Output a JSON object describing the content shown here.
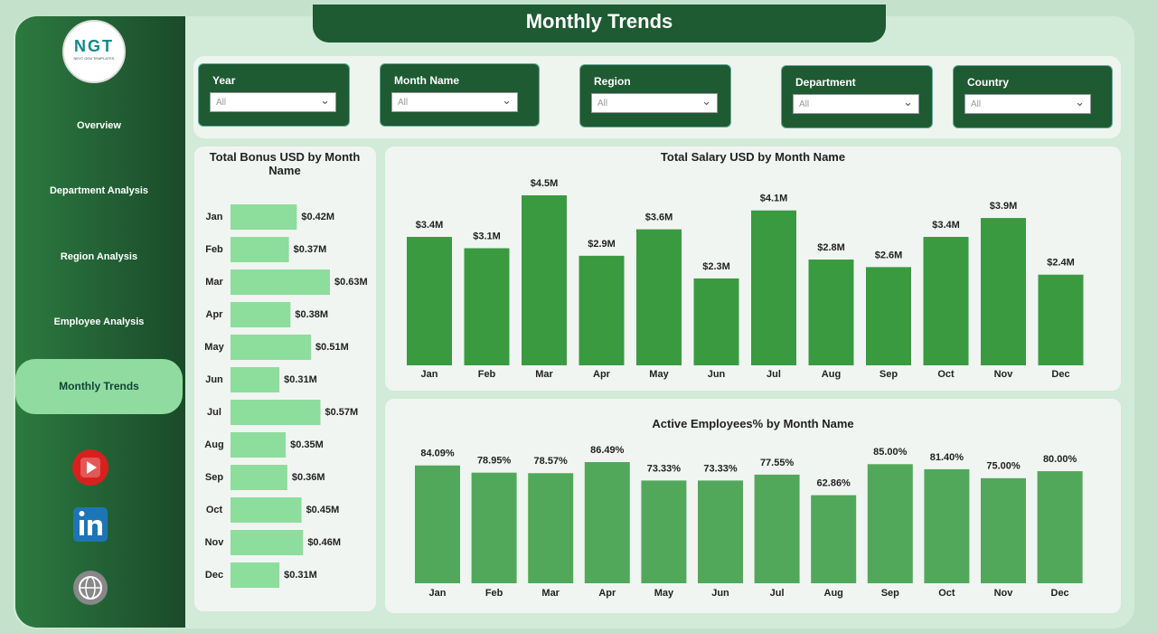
{
  "header": {
    "title": "Monthly Trends"
  },
  "logo": {
    "text": "NGT",
    "subtitle": "NEXT GEN TEMPLATES"
  },
  "nav": [
    "Overview",
    "Department Analysis",
    "Region Analysis",
    "Employee Analysis",
    "Monthly Trends"
  ],
  "filters": [
    {
      "label": "Year",
      "value": "All"
    },
    {
      "label": "Month Name",
      "value": "All"
    },
    {
      "label": "Region",
      "value": "All"
    },
    {
      "label": "Department",
      "value": "All"
    },
    {
      "label": "Country",
      "value": "All"
    }
  ],
  "chart_data": [
    {
      "type": "bar",
      "orientation": "horizontal",
      "title": "Total Bonus USD by Month Name",
      "color": "#8ddd9c",
      "categories": [
        "Jan",
        "Feb",
        "Mar",
        "Apr",
        "May",
        "Jun",
        "Jul",
        "Aug",
        "Sep",
        "Oct",
        "Nov",
        "Dec"
      ],
      "values": [
        0.42,
        0.37,
        0.63,
        0.38,
        0.51,
        0.31,
        0.57,
        0.35,
        0.36,
        0.45,
        0.46,
        0.31
      ],
      "value_labels": [
        "$0.42M",
        "$0.37M",
        "$0.63M",
        "$0.38M",
        "$0.51M",
        "$0.31M",
        "$0.57M",
        "$0.35M",
        "$0.36M",
        "$0.45M",
        "$0.46M",
        "$0.31M"
      ]
    },
    {
      "type": "bar",
      "orientation": "vertical",
      "title": "Total Salary USD by Month Name",
      "color": "#3a9a40",
      "categories": [
        "Jan",
        "Feb",
        "Mar",
        "Apr",
        "May",
        "Jun",
        "Jul",
        "Aug",
        "Sep",
        "Oct",
        "Nov",
        "Dec"
      ],
      "values": [
        3.4,
        3.1,
        4.5,
        2.9,
        3.6,
        2.3,
        4.1,
        2.8,
        2.6,
        3.4,
        3.9,
        2.4
      ],
      "value_labels": [
        "$3.4M",
        "$3.1M",
        "$4.5M",
        "$2.9M",
        "$3.6M",
        "$2.3M",
        "$4.1M",
        "$2.8M",
        "$2.6M",
        "$3.4M",
        "$3.9M",
        "$2.4M"
      ]
    },
    {
      "type": "bar",
      "orientation": "vertical",
      "title": "Active Employees% by Month Name",
      "color": "#52a85a",
      "categories": [
        "Jan",
        "Feb",
        "Mar",
        "Apr",
        "May",
        "Jun",
        "Jul",
        "Aug",
        "Sep",
        "Oct",
        "Nov",
        "Dec"
      ],
      "values": [
        84.09,
        78.95,
        78.57,
        86.49,
        73.33,
        73.33,
        77.55,
        62.86,
        85.0,
        81.4,
        75.0,
        80.0
      ],
      "value_labels": [
        "84.09%",
        "78.95%",
        "78.57%",
        "86.49%",
        "73.33%",
        "73.33%",
        "77.55%",
        "62.86%",
        "85.00%",
        "81.40%",
        "75.00%",
        "80.00%"
      ]
    }
  ]
}
